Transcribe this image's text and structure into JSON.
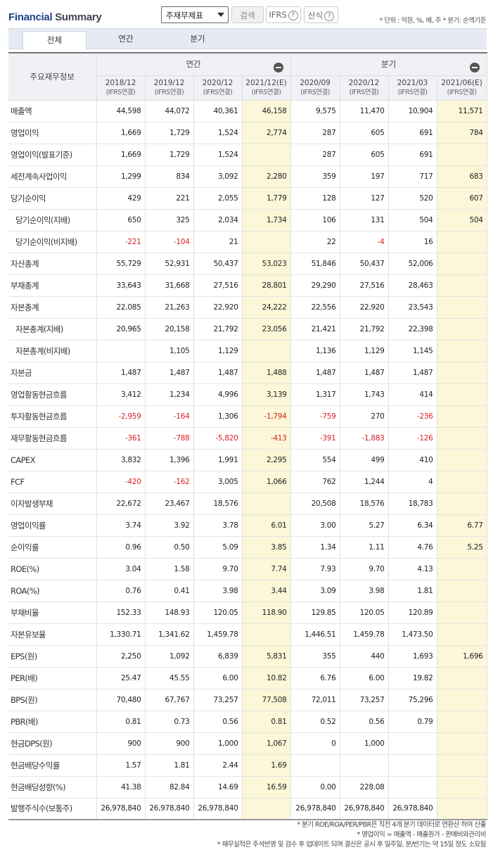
{
  "header": {
    "brand_a": "Financial",
    "brand_b": " Summary",
    "select_value": "주재무제표",
    "search_label": "검색",
    "ifrs_label": "IFRS",
    "calc_label": "산식",
    "unit_note": "* 단위 : 억원, %, 배, 주   * 분기: 순액기준"
  },
  "tabs": [
    "전체",
    "연간",
    "분기"
  ],
  "table": {
    "row_header": "주요재무정보",
    "group_annual": "연간",
    "group_quarter": "분기",
    "columns": [
      {
        "period": "2018/12",
        "basis": "(IFRS연결)"
      },
      {
        "period": "2019/12",
        "basis": "(IFRS연결)"
      },
      {
        "period": "2020/12",
        "basis": "(IFRS연결)"
      },
      {
        "period": "2021/12(E)",
        "basis": "(IFRS연결)"
      },
      {
        "period": "2020/09",
        "basis": "(IFRS연결)"
      },
      {
        "period": "2020/12",
        "basis": "(IFRS연결)"
      },
      {
        "period": "2021/03",
        "basis": "(IFRS연결)"
      },
      {
        "period": "2021/06(E)",
        "basis": "(IFRS연결)"
      }
    ],
    "rows": [
      {
        "label": "매출액",
        "indent": false,
        "values": [
          "44,598",
          "44,072",
          "40,361",
          "46,158",
          "9,575",
          "11,470",
          "10,904",
          "11,571"
        ]
      },
      {
        "label": "영업이익",
        "indent": false,
        "values": [
          "1,669",
          "1,729",
          "1,524",
          "2,774",
          "287",
          "605",
          "691",
          "784"
        ]
      },
      {
        "label": "영업이익(발표기준)",
        "indent": false,
        "values": [
          "1,669",
          "1,729",
          "1,524",
          "",
          "287",
          "605",
          "691",
          ""
        ]
      },
      {
        "label": "세전계속사업이익",
        "indent": false,
        "values": [
          "1,299",
          "834",
          "3,092",
          "2,280",
          "359",
          "197",
          "717",
          "683"
        ]
      },
      {
        "label": "당기순이익",
        "indent": false,
        "values": [
          "429",
          "221",
          "2,055",
          "1,779",
          "128",
          "127",
          "520",
          "607"
        ]
      },
      {
        "label": "당기순이익(지배)",
        "indent": true,
        "values": [
          "650",
          "325",
          "2,034",
          "1,734",
          "106",
          "131",
          "504",
          "504"
        ]
      },
      {
        "label": "당기순이익(비지배)",
        "indent": true,
        "values": [
          "-221",
          "-104",
          "21",
          "",
          "22",
          "-4",
          "16",
          ""
        ]
      },
      {
        "label": "자산총계",
        "indent": false,
        "values": [
          "55,729",
          "52,931",
          "50,437",
          "53,023",
          "51,846",
          "50,437",
          "52,006",
          ""
        ]
      },
      {
        "label": "부채총계",
        "indent": false,
        "values": [
          "33,643",
          "31,668",
          "27,516",
          "28,801",
          "29,290",
          "27,516",
          "28,463",
          ""
        ]
      },
      {
        "label": "자본총계",
        "indent": false,
        "values": [
          "22,085",
          "21,263",
          "22,920",
          "24,222",
          "22,556",
          "22,920",
          "23,543",
          ""
        ]
      },
      {
        "label": "자본총계(지배)",
        "indent": true,
        "values": [
          "20,965",
          "20,158",
          "21,792",
          "23,056",
          "21,421",
          "21,792",
          "22,398",
          ""
        ]
      },
      {
        "label": "자본총계(비지배)",
        "indent": true,
        "values": [
          "",
          "1,105",
          "1,129",
          "",
          "1,136",
          "1,129",
          "1,145",
          ""
        ]
      },
      {
        "label": "자본금",
        "indent": false,
        "values": [
          "1,487",
          "1,487",
          "1,487",
          "1,488",
          "1,487",
          "1,487",
          "1,487",
          ""
        ]
      },
      {
        "label": "영업활동현금흐름",
        "indent": false,
        "values": [
          "3,412",
          "1,234",
          "4,996",
          "3,139",
          "1,317",
          "1,743",
          "414",
          ""
        ]
      },
      {
        "label": "투자활동현금흐름",
        "indent": false,
        "values": [
          "-2,959",
          "-164",
          "1,306",
          "-1,794",
          "-759",
          "270",
          "-236",
          ""
        ]
      },
      {
        "label": "재무활동현금흐름",
        "indent": false,
        "values": [
          "-361",
          "-788",
          "-5,820",
          "-413",
          "-391",
          "-1,883",
          "-126",
          ""
        ]
      },
      {
        "label": "CAPEX",
        "indent": false,
        "values": [
          "3,832",
          "1,396",
          "1,991",
          "2,295",
          "554",
          "499",
          "410",
          ""
        ]
      },
      {
        "label": "FCF",
        "indent": false,
        "values": [
          "-420",
          "-162",
          "3,005",
          "1,066",
          "762",
          "1,244",
          "4",
          ""
        ]
      },
      {
        "label": "이자발생부채",
        "indent": false,
        "values": [
          "22,672",
          "23,467",
          "18,576",
          "",
          "20,508",
          "18,576",
          "18,783",
          ""
        ]
      },
      {
        "label": "영업이익률",
        "indent": false,
        "values": [
          "3.74",
          "3.92",
          "3.78",
          "6.01",
          "3.00",
          "5.27",
          "6.34",
          "6.77"
        ]
      },
      {
        "label": "순이익률",
        "indent": false,
        "values": [
          "0.96",
          "0.50",
          "5.09",
          "3.85",
          "1.34",
          "1.11",
          "4.76",
          "5.25"
        ]
      },
      {
        "label": "ROE(%)",
        "indent": false,
        "values": [
          "3.04",
          "1.58",
          "9.70",
          "7.74",
          "7.93",
          "9.70",
          "4.13",
          ""
        ]
      },
      {
        "label": "ROA(%)",
        "indent": false,
        "values": [
          "0.76",
          "0.41",
          "3.98",
          "3.44",
          "3.09",
          "3.98",
          "1.81",
          ""
        ]
      },
      {
        "label": "부채비율",
        "indent": false,
        "values": [
          "152.33",
          "148.93",
          "120.05",
          "118.90",
          "129.85",
          "120.05",
          "120.89",
          ""
        ]
      },
      {
        "label": "자본유보율",
        "indent": false,
        "values": [
          "1,330.71",
          "1,341.62",
          "1,459.78",
          "",
          "1,446.51",
          "1,459.78",
          "1,473.50",
          ""
        ]
      },
      {
        "label": "EPS(원)",
        "indent": false,
        "values": [
          "2,250",
          "1,092",
          "6,839",
          "5,831",
          "355",
          "440",
          "1,693",
          "1,696"
        ]
      },
      {
        "label": "PER(배)",
        "indent": false,
        "values": [
          "25.47",
          "45.55",
          "6.00",
          "10.82",
          "6.76",
          "6.00",
          "19.82",
          ""
        ]
      },
      {
        "label": "BPS(원)",
        "indent": false,
        "values": [
          "70,480",
          "67,767",
          "73,257",
          "77,508",
          "72,011",
          "73,257",
          "75,296",
          ""
        ]
      },
      {
        "label": "PBR(배)",
        "indent": false,
        "values": [
          "0.81",
          "0.73",
          "0.56",
          "0.81",
          "0.52",
          "0.56",
          "0.79",
          ""
        ]
      },
      {
        "label": "현금DPS(원)",
        "indent": false,
        "values": [
          "900",
          "900",
          "1,000",
          "1,067",
          "0",
          "1,000",
          "",
          ""
        ]
      },
      {
        "label": "현금배당수익률",
        "indent": false,
        "values": [
          "1.57",
          "1.81",
          "2.44",
          "1.69",
          "",
          "",
          "",
          ""
        ]
      },
      {
        "label": "현금배당성향(%)",
        "indent": false,
        "values": [
          "41.38",
          "82.84",
          "14.69",
          "16.59",
          "0.00",
          "228.08",
          "",
          ""
        ]
      },
      {
        "label": "발행주식수(보통주)",
        "indent": false,
        "values": [
          "26,978,840",
          "26,978,840",
          "26,978,840",
          "",
          "26,978,840",
          "26,978,840",
          "26,978,840",
          ""
        ]
      }
    ]
  },
  "notes": [
    "* 분기 ROE/ROA/PER/PBR은 직전 4개 분기 데이터로 연환산 하여 산출",
    "* 영업이익 = 매출액 - 매출원가 - 판매비와관리비",
    "* 재무실적은 주석반영 및 검수 후 업데이트 되며 결산은 공시 후 일주일, 분/반기는 약 15일 정도 소요됨"
  ]
}
